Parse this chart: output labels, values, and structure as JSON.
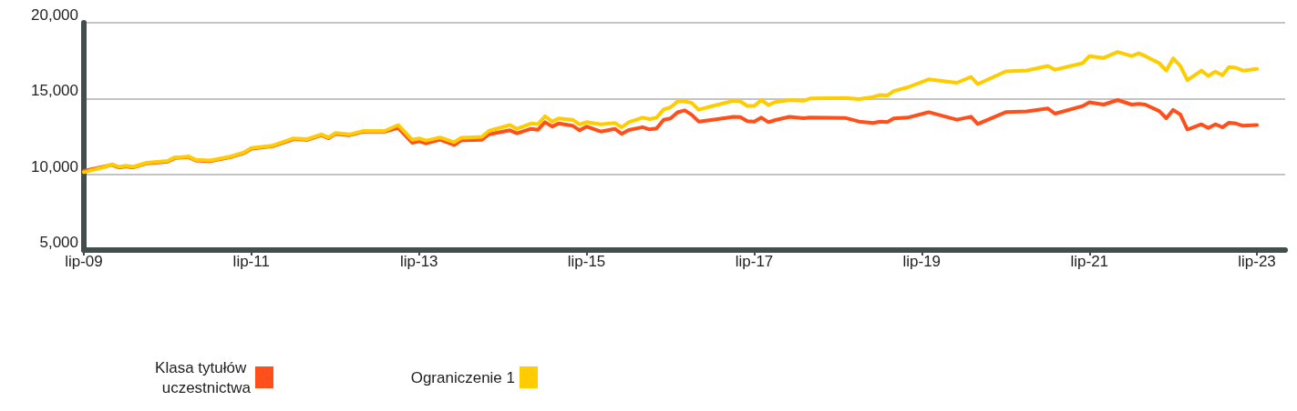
{
  "chart_data": {
    "type": "line",
    "x": [
      "2009-07",
      "2009-10",
      "2009-11",
      "2009-12",
      "2010-01",
      "2010-02",
      "2010-04",
      "2010-07",
      "2010-08",
      "2010-10",
      "2010-11",
      "2011-01",
      "2011-04",
      "2011-06",
      "2011-07",
      "2011-10",
      "2012-01",
      "2012-03",
      "2012-05",
      "2012-06",
      "2012-07",
      "2012-09",
      "2012-11",
      "2013-02",
      "2013-04",
      "2013-06",
      "2013-07",
      "2013-08",
      "2013-10",
      "2013-12",
      "2014-01",
      "2014-04",
      "2014-05",
      "2014-08",
      "2014-09",
      "2014-11",
      "2014-12",
      "2015-01",
      "2015-02",
      "2015-03",
      "2015-05",
      "2015-06",
      "2015-07",
      "2015-09",
      "2015-11",
      "2015-12",
      "2016-01",
      "2016-03",
      "2016-04",
      "2016-05",
      "2016-06",
      "2016-07",
      "2016-08",
      "2016-09",
      "2016-10",
      "2016-11",
      "2017-01",
      "2017-04",
      "2017-05",
      "2017-06",
      "2017-07",
      "2017-08",
      "2017-09",
      "2017-10",
      "2017-12",
      "2018-02",
      "2018-03",
      "2018-08",
      "2018-10",
      "2018-12",
      "2019-01",
      "2019-02",
      "2019-03",
      "2019-05",
      "2019-08",
      "2019-12",
      "2020-02",
      "2020-03",
      "2020-07",
      "2020-10",
      "2021-01",
      "2021-02",
      "2021-06",
      "2021-07",
      "2021-09",
      "2021-11",
      "2022-01",
      "2022-02",
      "2022-03",
      "2022-05",
      "2022-06",
      "2022-07",
      "2022-08",
      "2022-09",
      "2022-11",
      "2022-12",
      "2023-01",
      "2023-02",
      "2023-03",
      "2023-04",
      "2023-05",
      "2023-07"
    ],
    "series": [
      {
        "name": "Klasa tytułów uczestnictwa",
        "color": "#ff4f1a",
        "values": [
          10230,
          10520,
          10620,
          10450,
          10520,
          10450,
          10720,
          10840,
          11070,
          11130,
          10910,
          10870,
          11130,
          11420,
          11690,
          11850,
          12320,
          12270,
          12580,
          12380,
          12670,
          12580,
          12810,
          12810,
          13060,
          12080,
          12180,
          12040,
          12280,
          11930,
          12240,
          12280,
          12630,
          12900,
          12700,
          13000,
          12940,
          13440,
          13150,
          13350,
          13210,
          12900,
          13150,
          12820,
          13000,
          12670,
          12920,
          13110,
          12960,
          13020,
          13600,
          13680,
          14090,
          14220,
          13930,
          13480,
          13600,
          13790,
          13770,
          13500,
          13480,
          13740,
          13440,
          13580,
          13790,
          13700,
          13750,
          13720,
          13480,
          13390,
          13480,
          13440,
          13680,
          13740,
          14100,
          13600,
          13800,
          13320,
          14100,
          14150,
          14340,
          14000,
          14500,
          14750,
          14600,
          14900,
          14600,
          14650,
          14600,
          14170,
          13700,
          14250,
          13950,
          12950,
          13300,
          13050,
          13300,
          13100,
          13400,
          13350,
          13200,
          13250
        ]
      },
      {
        "name": "Ograniczenie 1",
        "color": "#ffcc00",
        "values": [
          10140,
          10490,
          10660,
          10490,
          10560,
          10490,
          10760,
          10880,
          11110,
          11170,
          10950,
          10910,
          11170,
          11460,
          11730,
          11890,
          12370,
          12320,
          12630,
          12430,
          12720,
          12630,
          12860,
          12860,
          13250,
          12280,
          12370,
          12220,
          12430,
          12120,
          12410,
          12470,
          12860,
          13250,
          13000,
          13350,
          13310,
          13830,
          13480,
          13680,
          13600,
          13290,
          13440,
          13290,
          13390,
          13100,
          13440,
          13740,
          13640,
          13740,
          14280,
          14420,
          14810,
          14810,
          14710,
          14260,
          14510,
          14850,
          14810,
          14510,
          14510,
          14900,
          14570,
          14770,
          14900,
          14850,
          15000,
          15040,
          14960,
          15100,
          15230,
          15200,
          15490,
          15740,
          16270,
          16040,
          16430,
          15950,
          16790,
          16850,
          17150,
          16900,
          17330,
          17800,
          17680,
          18070,
          17800,
          17990,
          17800,
          17330,
          16850,
          17650,
          17150,
          16210,
          16840,
          16490,
          16780,
          16530,
          17070,
          17030,
          16840,
          16950
        ]
      }
    ],
    "xlim": [
      "2009-07",
      "2023-11"
    ],
    "xticks": [
      {
        "value": "2009-07",
        "label": "lip-09"
      },
      {
        "value": "2011-07",
        "label": "lip-11"
      },
      {
        "value": "2013-07",
        "label": "lip-13"
      },
      {
        "value": "2015-07",
        "label": "lip-15"
      },
      {
        "value": "2017-07",
        "label": "lip-17"
      },
      {
        "value": "2019-07",
        "label": "lip-19"
      },
      {
        "value": "2021-07",
        "label": "lip-21"
      },
      {
        "value": "2023-07",
        "label": "lip-23"
      }
    ],
    "ylim": [
      5000,
      20000
    ],
    "yticks": [
      {
        "value": 5000,
        "label": "5,000"
      },
      {
        "value": 10000,
        "label": "10,000"
      },
      {
        "value": 15000,
        "label": "15,000"
      },
      {
        "value": 20000,
        "label": "20,000"
      }
    ],
    "grid": "y",
    "legend": "bottom left",
    "marker": "none",
    "line_style": "solid"
  }
}
